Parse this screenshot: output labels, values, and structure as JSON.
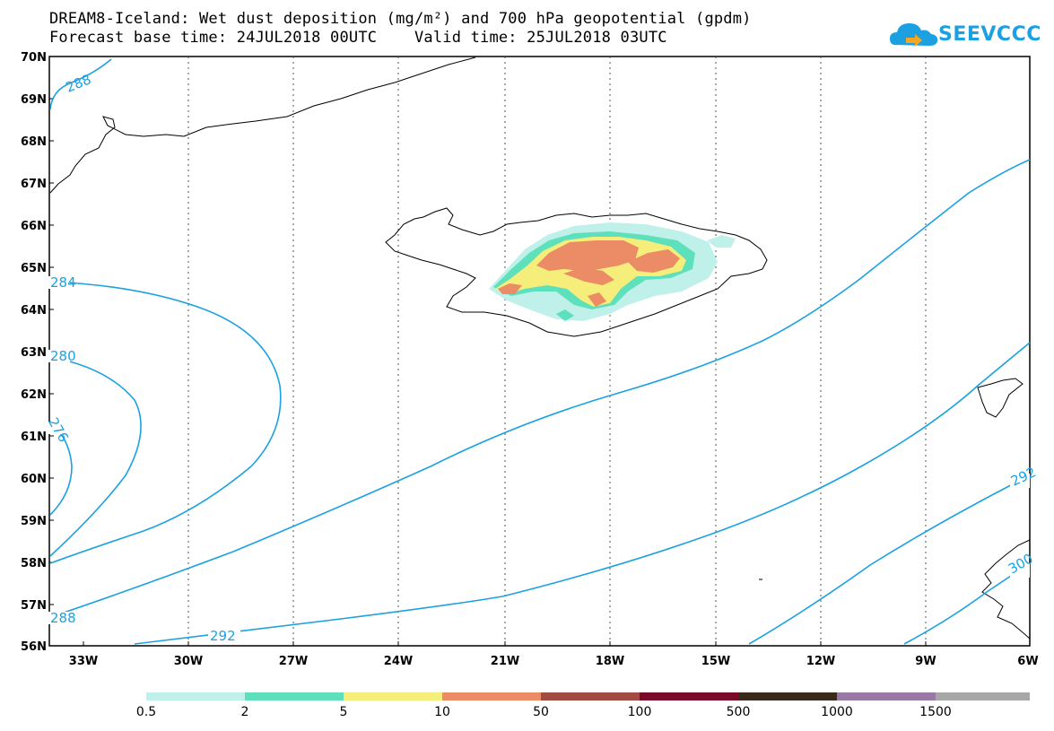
{
  "header": {
    "title_line1": "DREAM8-Iceland: Wet dust deposition (mg/m²) and 700 hPa geopotential (gpdm)",
    "title_line2": "Forecast base time: 24JUL2018 00UTC    Valid time: 25JUL2018 03UTC"
  },
  "logo": {
    "text": "SEEVCCC",
    "icon": "cloud-logo-icon",
    "color": "#1ba1e2"
  },
  "map": {
    "lat_labels": [
      "70N",
      "69N",
      "68N",
      "67N",
      "66N",
      "65N",
      "64N",
      "63N",
      "62N",
      "61N",
      "60N",
      "59N",
      "58N",
      "57N",
      "56N"
    ],
    "lon_labels": [
      "33W",
      "30W",
      "27W",
      "24W",
      "21W",
      "18W",
      "15W",
      "12W",
      "9W",
      "6W"
    ],
    "contour_color": "#1ba1e2",
    "contour_labels": [
      "288",
      "284",
      "280",
      "276",
      "288",
      "292",
      "292",
      "300"
    ]
  },
  "legend": {
    "colors": [
      "#bff1ea",
      "#5fe0bc",
      "#f5ee7a",
      "#ec8c66",
      "#a24b42",
      "#7a0a2a",
      "#3a2a1c",
      "#9a78a6",
      "#a7a7a7"
    ],
    "labels": [
      "0.5",
      "2",
      "5",
      "10",
      "50",
      "100",
      "500",
      "1000",
      "1500"
    ]
  }
}
